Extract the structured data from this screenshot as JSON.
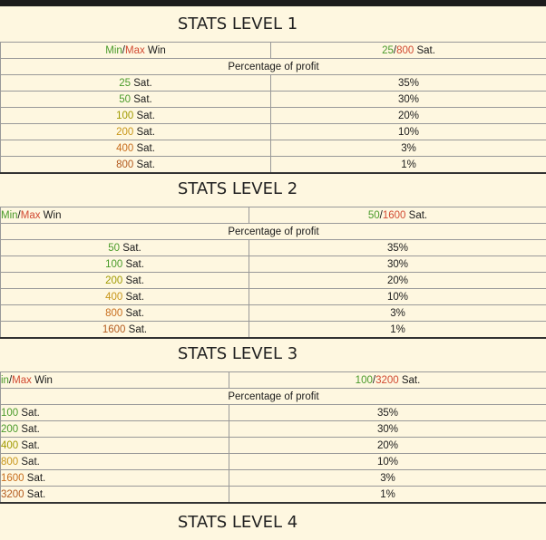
{
  "levels": [
    {
      "title": "STATS LEVEL 1",
      "minmax_row": {
        "min_label": "Min",
        "slash": "/",
        "max_label": "Max",
        "win_label": "Win",
        "min_value": "25",
        "max_value": "800",
        "unit": "Sat."
      },
      "profit_header": "Percentage of profit",
      "rows": [
        {
          "amount": "25",
          "unit": "Sat.",
          "percent": "35%",
          "color": "green"
        },
        {
          "amount": "50",
          "unit": "Sat.",
          "percent": "30%",
          "color": "green"
        },
        {
          "amount": "100",
          "unit": "Sat.",
          "percent": "20%",
          "color": "olive"
        },
        {
          "amount": "200",
          "unit": "Sat.",
          "percent": "10%",
          "color": "amber"
        },
        {
          "amount": "400",
          "unit": "Sat.",
          "percent": "3%",
          "color": "orange"
        },
        {
          "amount": "800",
          "unit": "Sat.",
          "percent": "1%",
          "color": "brown"
        }
      ]
    },
    {
      "title": "STATS LEVEL 2",
      "minmax_row": {
        "min_label": "Min",
        "slash": "/",
        "max_label": "Max",
        "win_label": "Win",
        "min_value": "50",
        "max_value": "1600",
        "unit": "Sat."
      },
      "profit_header": "Percentage of profit",
      "rows": [
        {
          "amount": "50",
          "unit": "Sat.",
          "percent": "35%",
          "color": "green"
        },
        {
          "amount": "100",
          "unit": "Sat.",
          "percent": "30%",
          "color": "green"
        },
        {
          "amount": "200",
          "unit": "Sat.",
          "percent": "20%",
          "color": "olive"
        },
        {
          "amount": "400",
          "unit": "Sat.",
          "percent": "10%",
          "color": "amber"
        },
        {
          "amount": "800",
          "unit": "Sat.",
          "percent": "3%",
          "color": "orange"
        },
        {
          "amount": "1600",
          "unit": "Sat.",
          "percent": "1%",
          "color": "brown"
        }
      ]
    },
    {
      "title": "STATS LEVEL 3",
      "minmax_row": {
        "min_label": "in",
        "slash": "/",
        "max_label": "Max",
        "win_label": "Win",
        "min_value": "100",
        "max_value": "3200",
        "unit": "Sat."
      },
      "profit_header": "Percentage of profit",
      "rows": [
        {
          "amount": "100",
          "unit": "Sat.",
          "percent": "35%",
          "color": "green"
        },
        {
          "amount": "200",
          "unit": "Sat.",
          "percent": "30%",
          "color": "green"
        },
        {
          "amount": "400",
          "unit": "Sat.",
          "percent": "20%",
          "color": "olive"
        },
        {
          "amount": "800",
          "unit": "Sat.",
          "percent": "10%",
          "color": "amber"
        },
        {
          "amount": "1600",
          "unit": "Sat.",
          "percent": "3%",
          "color": "orange"
        },
        {
          "amount": "3200",
          "unit": "Sat.",
          "percent": "1%",
          "color": "brown"
        }
      ]
    }
  ],
  "cut_title": "STATS LEVEL 4",
  "colors": {
    "background": "#fef7e0",
    "green": "#4a9b2a",
    "red": "#d24a32",
    "olive": "#a09a00",
    "amber": "#c8961a",
    "orange": "#c86e1e",
    "brown": "#b35a1e"
  }
}
